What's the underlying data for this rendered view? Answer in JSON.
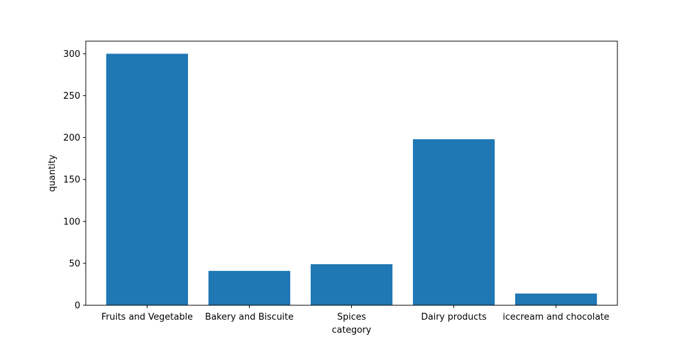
{
  "chart_data": {
    "type": "bar",
    "categories": [
      "Fruits and Vegetable",
      "Bakery and Biscuite",
      "Spices",
      "Dairy products",
      "icecream and chocolate"
    ],
    "values": [
      300,
      41,
      49,
      198,
      14
    ],
    "title": "",
    "xlabel": "category",
    "ylabel": "quantity",
    "ylim": [
      0,
      315
    ],
    "yticks": [
      0,
      50,
      100,
      150,
      200,
      250,
      300
    ],
    "grid": false,
    "legend": "none",
    "bar_color": "#1f77b4"
  }
}
